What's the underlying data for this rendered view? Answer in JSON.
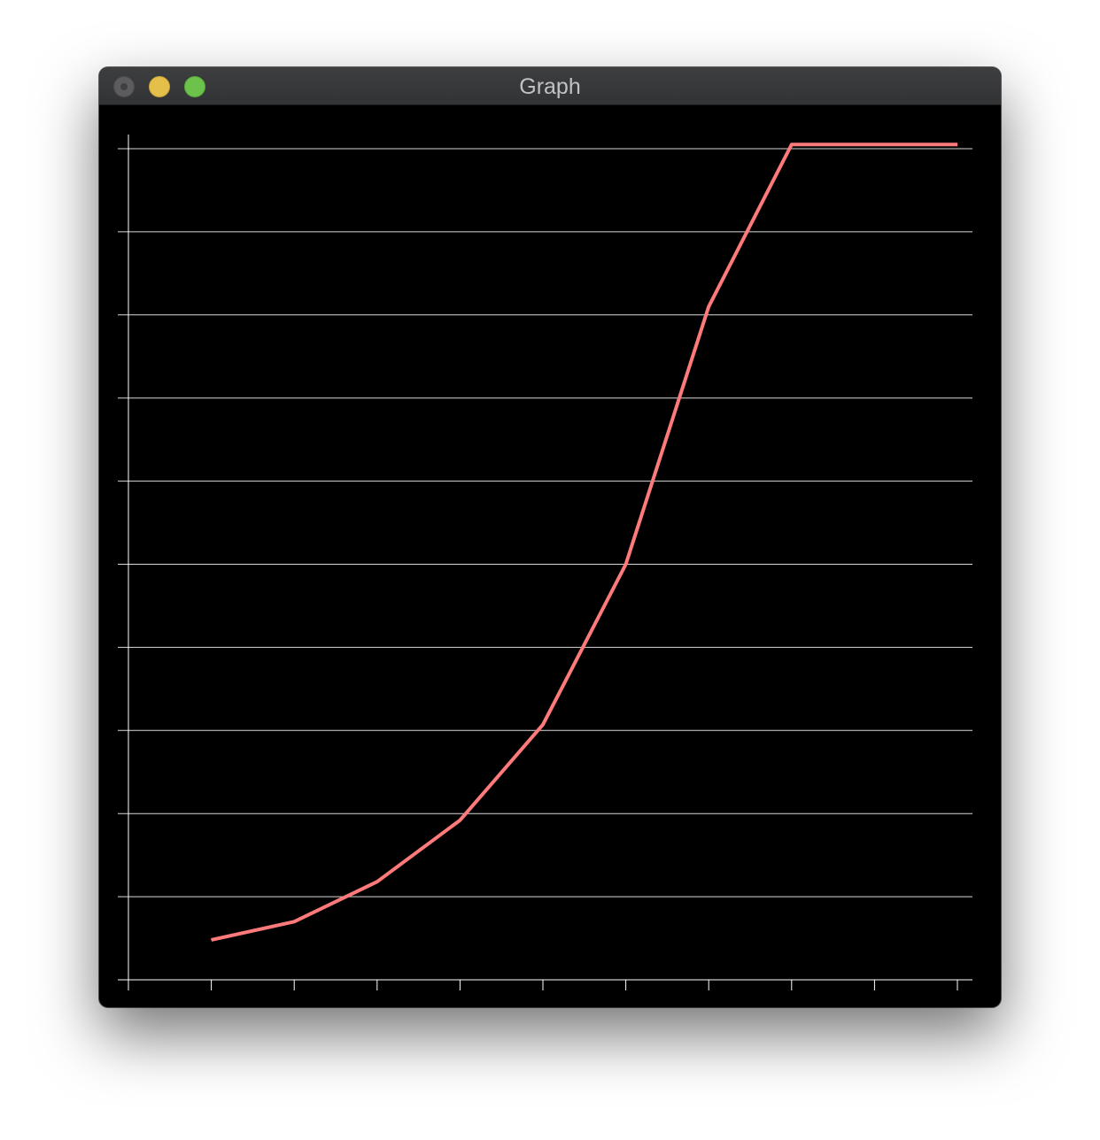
{
  "window": {
    "title": "Graph",
    "controls": {
      "close": "close-button",
      "minimize": "minimize-button",
      "zoom": "zoom-button"
    }
  },
  "colors": {
    "background": "#000000",
    "grid": "#ffffff",
    "line": "#ff7a7a"
  },
  "chart_data": {
    "type": "line",
    "title": "",
    "xlabel": "",
    "ylabel": "",
    "grid": true,
    "xlim": [
      0,
      10
    ],
    "ylim": [
      0,
      10
    ],
    "x": [
      1,
      2,
      3,
      4,
      5,
      6,
      7,
      8,
      9,
      10
    ],
    "series": [
      {
        "values": [
          0.48,
          0.7,
          1.18,
          1.92,
          3.07,
          5.0,
          8.1,
          10.05,
          10.05,
          10.05
        ]
      }
    ]
  }
}
